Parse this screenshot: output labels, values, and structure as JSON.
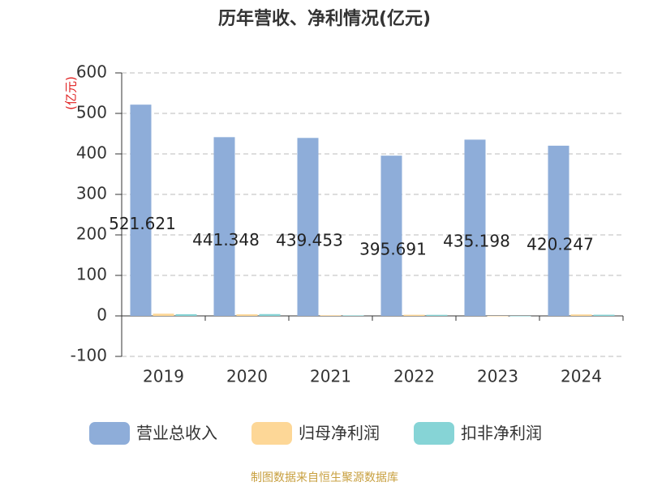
{
  "chart_data": {
    "type": "bar",
    "title": "历年营收、净利情况(亿元)",
    "y_label": "(亿元)",
    "source": "制图数据来自恒生聚源数据库",
    "categories": [
      "2019",
      "2020",
      "2021",
      "2022",
      "2023",
      "2024"
    ],
    "series": [
      {
        "name": "营业总收入",
        "color": "#8eadd9",
        "values": [
          521.621,
          441.348,
          439.453,
          395.691,
          435.198,
          420.247
        ],
        "show_labels": true
      },
      {
        "name": "归母净利润",
        "color": "#fdd797",
        "values": [
          5.5,
          3.9,
          1.5,
          2.8,
          -0.5,
          3.6
        ]
      },
      {
        "name": "扣非净利润",
        "color": "#86d4d6",
        "values": [
          4.2,
          4.5,
          1.2,
          2.6,
          -0.8,
          2.9
        ]
      }
    ],
    "ylim": [
      -100,
      600
    ],
    "yticks": [
      -100,
      0,
      100,
      200,
      300,
      400,
      500,
      600
    ],
    "grid": true
  }
}
